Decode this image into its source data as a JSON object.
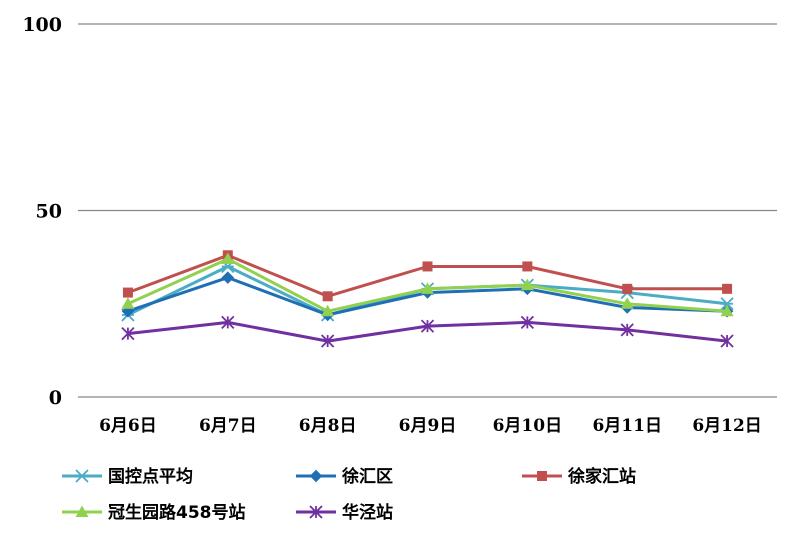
{
  "chart_data": {
    "type": "line",
    "title": "",
    "xlabel": "",
    "ylabel": "",
    "categories": [
      "6月6日",
      "6月7日",
      "6月8日",
      "6月9日",
      "6月10日",
      "6月11日",
      "6月12日"
    ],
    "y_ticks": [
      "0",
      "50",
      "100"
    ],
    "ylim": [
      0,
      100
    ],
    "grid": true,
    "legend_position": "bottom",
    "series": [
      {
        "name": "国控点平均",
        "color": "#4BACC6",
        "marker": "asterisk",
        "values": [
          22,
          35,
          22,
          29,
          30,
          28,
          25
        ]
      },
      {
        "name": "徐汇区",
        "color": "#1F6FB5",
        "marker": "diamond",
        "values": [
          23,
          32,
          22,
          28,
          29,
          24,
          23
        ]
      },
      {
        "name": "徐家汇站",
        "color": "#C0504D",
        "marker": "square",
        "values": [
          28,
          38,
          27,
          35,
          35,
          29,
          29
        ]
      },
      {
        "name": "冠生园路458号站",
        "color": "#92D050",
        "marker": "triangle",
        "values": [
          25,
          37,
          23,
          29,
          30,
          25,
          23
        ]
      },
      {
        "name": "华泾站",
        "color": "#7030A0",
        "marker": "star",
        "values": [
          17,
          20,
          15,
          19,
          20,
          18,
          15
        ]
      }
    ]
  }
}
